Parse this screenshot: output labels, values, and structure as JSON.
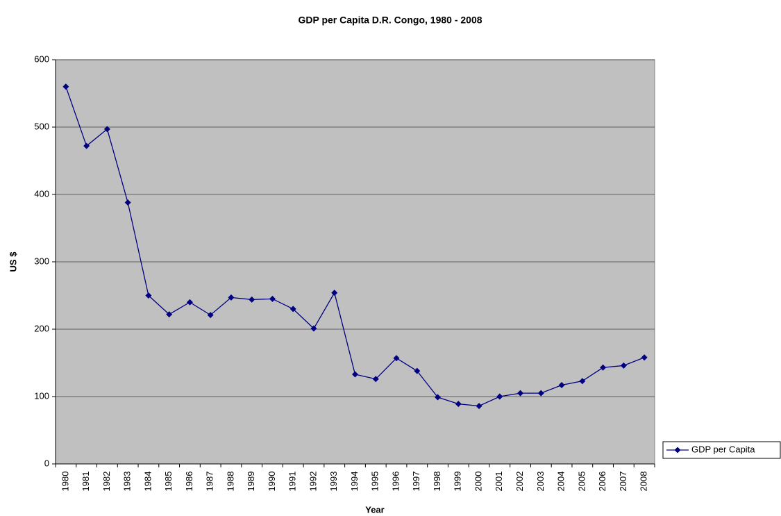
{
  "chart_data": {
    "type": "line",
    "title": "GDP per Capita D.R. Congo, 1980 - 2008",
    "x_label": "Year",
    "y_label": "US $",
    "categories": [
      "1980",
      "1981",
      "1982",
      "1983",
      "1984",
      "1985",
      "1986",
      "1987",
      "1988",
      "1989",
      "1990",
      "1991",
      "1992",
      "1993",
      "1994",
      "1995",
      "1996",
      "1997",
      "1998",
      "1999",
      "2000",
      "2001",
      "2002",
      "2003",
      "2004",
      "2005",
      "2006",
      "2007",
      "2008"
    ],
    "series": [
      {
        "name": "GDP per Capita",
        "color": "#000080",
        "values": [
          560,
          472,
          497,
          388,
          250,
          222,
          240,
          221,
          247,
          244,
          245,
          230,
          201,
          254,
          133,
          126,
          157,
          138,
          99,
          89,
          86,
          100,
          105,
          105,
          117,
          123,
          143,
          146,
          158
        ]
      }
    ],
    "ylim": [
      0,
      600
    ],
    "yticks": [
      0,
      100,
      200,
      300,
      400,
      500,
      600
    ],
    "grid": true,
    "legend": "right"
  }
}
